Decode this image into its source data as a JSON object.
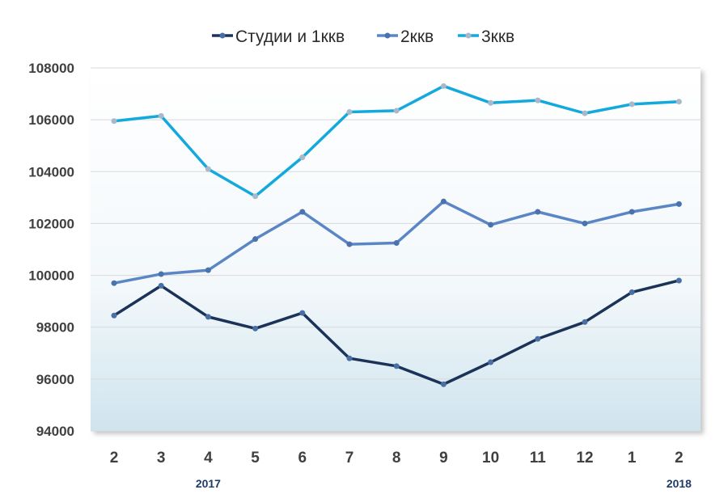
{
  "chart_data": {
    "type": "line",
    "categories": [
      "2",
      "3",
      "4",
      "5",
      "6",
      "7",
      "8",
      "9",
      "10",
      "11",
      "12",
      "1",
      "2"
    ],
    "year_labels": [
      {
        "label": "2017",
        "category_index": 2
      },
      {
        "label": "2018",
        "category_index": 12
      }
    ],
    "ylim": [
      94000,
      108000
    ],
    "yticks": [
      94000,
      96000,
      98000,
      100000,
      102000,
      104000,
      106000,
      108000
    ],
    "grid": true,
    "legend_position": "top",
    "series": [
      {
        "name": "Студии и 1ккв",
        "color": "#1b3358",
        "marker_color": "#4a6fa5",
        "values": [
          98450,
          99600,
          98400,
          97950,
          98550,
          96800,
          96500,
          95800,
          96650,
          97550,
          98200,
          99350,
          99800
        ]
      },
      {
        "name": "2ккв",
        "color": "#5b86c5",
        "marker_color": "#4a72ad",
        "values": [
          99700,
          100050,
          100200,
          101400,
          102450,
          101200,
          101250,
          102850,
          101950,
          102450,
          102000,
          102450,
          102750
        ]
      },
      {
        "name": "3ккв",
        "color": "#13a9dc",
        "marker_color": "#a9b9c9",
        "values": [
          105950,
          106150,
          104100,
          103050,
          104550,
          106300,
          106350,
          107300,
          106650,
          106750,
          106250,
          106600,
          106700
        ]
      }
    ]
  }
}
